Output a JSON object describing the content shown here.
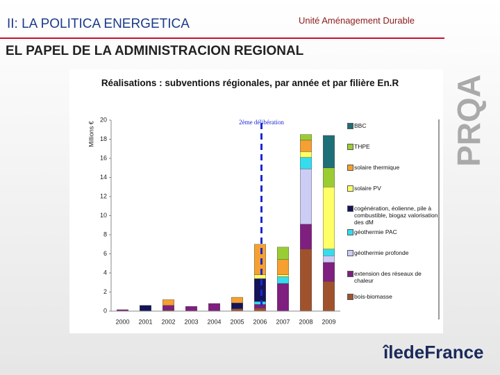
{
  "slide": {
    "section": "II: LA POLITICA ENERGETICA",
    "unit": "Unité Aménagement Durable",
    "heading": "EL PAPEL DE LA ADMINISTRACION REGIONAL",
    "brand": "PRQA",
    "logo": "îledeFrance"
  },
  "chart_data": {
    "type": "stacked-bar",
    "title": "Réalisations : subventions régionales, par année et par filière En.R",
    "y_label": "Millions €",
    "annotation": "2ème délibération",
    "annotation_category": 6,
    "categories": [
      "2000",
      "2001",
      "2002",
      "2003",
      "2004",
      "2005",
      "2006",
      "2007",
      "2008",
      "2009"
    ],
    "ylim": [
      0,
      20
    ],
    "yticks": [
      0,
      2,
      4,
      6,
      8,
      10,
      12,
      14,
      16,
      18,
      20
    ],
    "series": [
      {
        "name": "BBC",
        "color": "#1f6f78",
        "values": [
          0,
          0,
          0,
          0,
          0,
          0,
          0,
          0,
          0,
          3.4
        ]
      },
      {
        "name": "THPE",
        "color": "#9acd32",
        "values": [
          0,
          0,
          0,
          0,
          0,
          0,
          0,
          1.3,
          0.6,
          2.0
        ]
      },
      {
        "name": "solaire thermique",
        "color": "#f5a030",
        "values": [
          0,
          0,
          0.6,
          0,
          0,
          0.6,
          3.2,
          1.6,
          1.2,
          0
        ]
      },
      {
        "name": "solaire PV",
        "color": "#ffff66",
        "values": [
          0,
          0,
          0,
          0,
          0,
          0,
          0.4,
          0.2,
          0.6,
          6.5
        ]
      },
      {
        "name": "cogénération, éolienne, pile à combustible, biogaz valorisation des dM",
        "color": "#14145a",
        "values": [
          0,
          0.6,
          0,
          0,
          0,
          0.6,
          2.4,
          0,
          0,
          0
        ]
      },
      {
        "name": "géothermie PAC",
        "color": "#33ddee",
        "values": [
          0,
          0,
          0,
          0,
          0,
          0,
          0.3,
          0.7,
          1.2,
          0.7
        ]
      },
      {
        "name": "géothermie profonde",
        "color": "#ccccf5",
        "values": [
          0,
          0,
          0,
          0,
          0,
          0,
          0,
          0,
          5.8,
          0.7
        ]
      },
      {
        "name": "extension des réseaux de chaleur",
        "color": "#7f1f7f",
        "values": [
          0.15,
          0,
          0.5,
          0.5,
          0.8,
          0,
          0.4,
          2.9,
          2.6,
          2.0
        ]
      },
      {
        "name": "bois-biomasse",
        "color": "#a0522d",
        "values": [
          0,
          0,
          0.1,
          0,
          0,
          0.25,
          0.3,
          0,
          6.5,
          3.1
        ]
      }
    ]
  }
}
